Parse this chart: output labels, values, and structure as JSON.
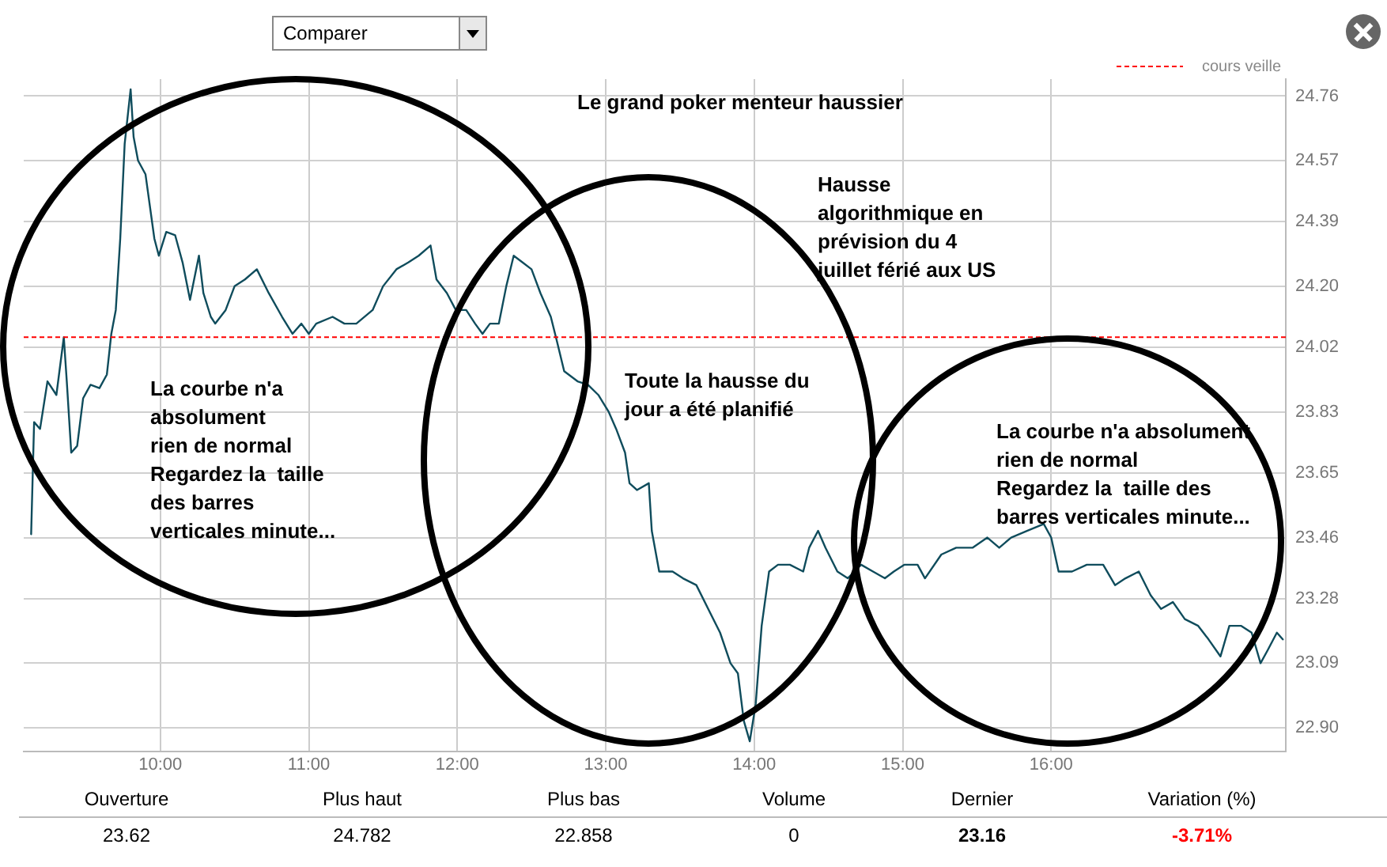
{
  "chart_data": {
    "type": "line",
    "title": "Le grand poker menteur haussier",
    "x": [
      9.13,
      9.15,
      9.19,
      9.24,
      9.3,
      9.35,
      9.37,
      9.4,
      9.44,
      9.48,
      9.53,
      9.59,
      9.64,
      9.67,
      9.7,
      9.73,
      9.76,
      9.8,
      9.82,
      9.85,
      9.9,
      9.96,
      9.99,
      10.04,
      10.1,
      10.15,
      10.2,
      10.26,
      10.29,
      10.34,
      10.37,
      10.44,
      10.5,
      10.57,
      10.65,
      10.73,
      10.82,
      10.89,
      10.95,
      11.0,
      11.05,
      11.16,
      11.24,
      11.32,
      11.43,
      11.5,
      11.59,
      11.67,
      11.74,
      11.82,
      11.86,
      11.93,
      11.99,
      12.06,
      12.12,
      12.17,
      12.22,
      12.28,
      12.33,
      12.38,
      12.44,
      12.5,
      12.56,
      12.63,
      12.67,
      12.72,
      12.81,
      12.88,
      12.95,
      13.02,
      13.07,
      13.13,
      13.16,
      13.21,
      13.29,
      13.31,
      13.36,
      13.45,
      13.52,
      13.61,
      13.69,
      13.77,
      13.84,
      13.89,
      13.93,
      13.97,
      14.01,
      14.05,
      14.1,
      14.16,
      14.24,
      14.33,
      14.37,
      14.43,
      14.48,
      14.56,
      14.63,
      14.72,
      14.8,
      14.88,
      14.94,
      15.01,
      15.1,
      15.15,
      15.26,
      15.36,
      15.47,
      15.57,
      15.65,
      15.73,
      15.84,
      15.95,
      16.0,
      16.05,
      16.14,
      16.24,
      16.35,
      16.43,
      16.5,
      16.59,
      16.67,
      16.74,
      16.82,
      16.9,
      16.99,
      17.06,
      17.14,
      17.2,
      17.28,
      17.35,
      17.41,
      17.46,
      17.52,
      17.56
    ],
    "series": [
      {
        "color": "#0f4c5c",
        "values": [
          23.47,
          23.8,
          23.78,
          23.92,
          23.88,
          24.05,
          23.92,
          23.71,
          23.73,
          23.87,
          23.91,
          23.9,
          23.94,
          24.06,
          24.13,
          24.34,
          24.62,
          24.78,
          24.64,
          24.57,
          24.53,
          24.34,
          24.29,
          24.36,
          24.35,
          24.27,
          24.16,
          24.29,
          24.18,
          24.11,
          24.09,
          24.13,
          24.2,
          24.22,
          24.25,
          24.18,
          24.11,
          24.06,
          24.09,
          24.06,
          24.09,
          24.11,
          24.09,
          24.09,
          24.13,
          24.2,
          24.25,
          24.27,
          24.29,
          24.32,
          24.22,
          24.18,
          24.13,
          24.13,
          24.09,
          24.06,
          24.09,
          24.09,
          24.2,
          24.29,
          24.27,
          24.25,
          24.18,
          24.11,
          24.04,
          23.95,
          23.92,
          23.91,
          23.88,
          23.83,
          23.78,
          23.71,
          23.62,
          23.6,
          23.62,
          23.48,
          23.36,
          23.36,
          23.34,
          23.32,
          23.25,
          23.18,
          23.09,
          23.06,
          22.92,
          22.86,
          22.97,
          23.2,
          23.36,
          23.38,
          23.38,
          23.36,
          23.43,
          23.48,
          23.43,
          23.36,
          23.34,
          23.38,
          23.36,
          23.34,
          23.36,
          23.38,
          23.38,
          23.34,
          23.41,
          23.43,
          23.43,
          23.46,
          23.43,
          23.46,
          23.48,
          23.5,
          23.46,
          23.36,
          23.36,
          23.38,
          23.38,
          23.32,
          23.34,
          23.36,
          23.29,
          23.25,
          23.27,
          23.22,
          23.2,
          23.16,
          23.11,
          23.2,
          23.2,
          23.18,
          23.09,
          23.13,
          23.18,
          23.16
        ]
      }
    ],
    "xlim": [
      9.08,
      17.58
    ],
    "xticks": [
      {
        "value": 10,
        "label": "10:00"
      },
      {
        "value": 11,
        "label": "11:00"
      },
      {
        "value": 12,
        "label": "12:00"
      },
      {
        "value": 13,
        "label": "13:00"
      },
      {
        "value": 14,
        "label": "14:00"
      },
      {
        "value": 15,
        "label": "15:00"
      },
      {
        "value": 16,
        "label": "16:00"
      }
    ],
    "ylim": [
      22.83,
      24.81
    ],
    "yticks": [
      {
        "value": 22.9,
        "label": "22.90"
      },
      23.09,
      23.28,
      23.46,
      23.65,
      23.83,
      24.02,
      {
        "value": 24.2,
        "label": "24.20"
      },
      24.39,
      24.57,
      24.76
    ],
    "ref_lines": [
      {
        "axis": "y",
        "value": 24.05,
        "label": "cours veille",
        "color": "#ff0000",
        "line_style": "dashed"
      }
    ],
    "grid": true,
    "marker": "none",
    "line_style": "solid",
    "annotations": [
      "La courbe n'a\nabsolument\nrien de normal\nRegardez la  taille\ndes barres\nverticales minute...",
      "Toute la hausse du\njour a été planifié",
      "Hausse\nalgorithmique en\nprévision du 4\njuillet férié aux US",
      "La courbe n'a absolument\nrien de normal\nRegardez la  taille des\nbarres verticales minute...",
      "Comparer",
      "Ouverture",
      "Plus haut",
      "Plus bas",
      "Volume",
      "Dernier",
      "Variation (%)",
      "23.62",
      "24.782",
      "22.858",
      "0",
      "23.16",
      "-3.71%"
    ]
  }
}
